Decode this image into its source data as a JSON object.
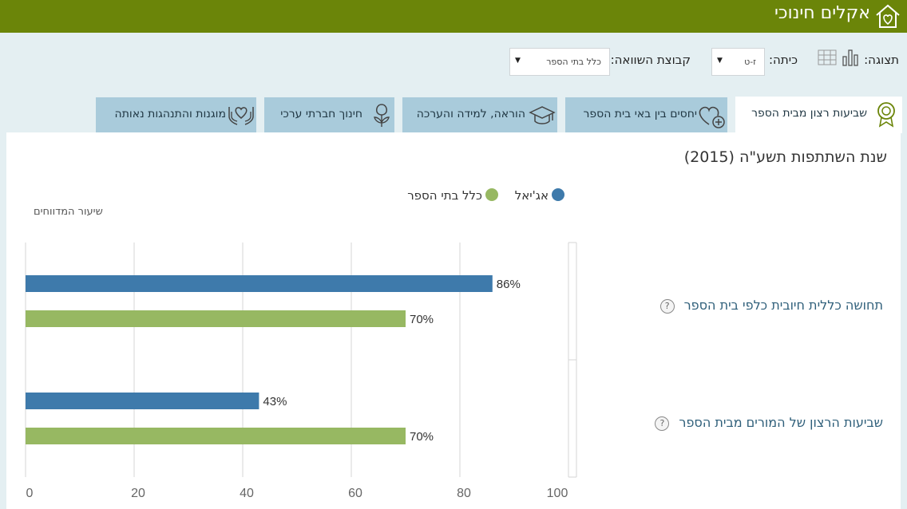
{
  "header": {
    "title": "אקלים חינוכי",
    "logo_icon": "house-heart-icon"
  },
  "filters": {
    "display_label": "תצוגה:",
    "class_label": "כיתה:",
    "class_value": "ז-ט",
    "compare_label": "קבוצת השוואה:",
    "compare_value": "כלל בתי הספר"
  },
  "tabs": [
    {
      "label": "שביעות רצון מבית הספר",
      "icon": "award-icon",
      "active": true
    },
    {
      "label": "יחסים בין באי בית הספר",
      "icon": "heart-plus-icon",
      "active": false
    },
    {
      "label": "הוראה, למידה והערכה",
      "icon": "graduation-cap-icon",
      "active": false
    },
    {
      "label": "חינוך חברתי ערכי",
      "icon": "flower-icon",
      "active": false
    },
    {
      "label": "מוגנות והתנהגות נאותה",
      "icon": "hands-heart-icon",
      "active": false
    }
  ],
  "main": {
    "title": "שנת השתתפות תשע\"ה (2015)",
    "y_caption": "שיעור המדווחים"
  },
  "colors": {
    "school": "#3e7aab",
    "all": "#97b862",
    "header": "#6b8509"
  },
  "chart_data": {
    "type": "bar",
    "orientation": "horizontal",
    "categories": [
      "תחושה כללית חיובית כלפי בית הספר",
      "שביעות הרצון של המורים מבית הספר"
    ],
    "series": [
      {
        "name": "אג'יאל",
        "values": [
          86,
          43
        ],
        "labels": [
          "86%",
          "43%"
        ]
      },
      {
        "name": "כלל בתי הספר",
        "values": [
          70,
          70
        ],
        "labels": [
          "70%",
          "70%"
        ]
      }
    ],
    "xlim": [
      0,
      100
    ],
    "xticks": [
      "0",
      "20",
      "40",
      "60",
      "80",
      "100"
    ],
    "xtick_values": [
      0,
      20,
      40,
      60,
      80,
      100
    ],
    "grid": true,
    "legend": "top"
  }
}
